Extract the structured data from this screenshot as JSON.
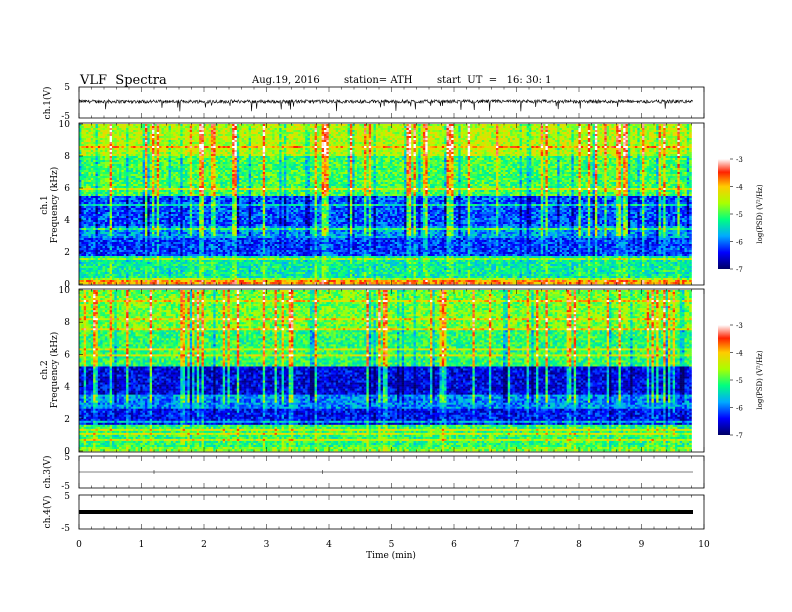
{
  "header": {
    "title": "VLF  Spectra",
    "date": "Aug.19, 2016",
    "station": "station= ATH",
    "start": "start  UT  =   16: 30: 1"
  },
  "chart_data": [
    {
      "type": "line",
      "panel": "ch1-waveform",
      "ylabel": "ch.1(V)",
      "ylim": [
        -5,
        5
      ],
      "yticks": [
        "5",
        "-5"
      ],
      "xlim": [
        0,
        10
      ],
      "description_values": {
        "baseline_V": 0.0,
        "noise_amplitude_V": 0.6,
        "max_spike_V": -3.5
      }
    },
    {
      "type": "heatmap",
      "panel": "ch1-spectrogram",
      "ylabel": "Frequency  (kHz)",
      "channel_label": "ch.1",
      "ylim": [
        0,
        10
      ],
      "yticks": [
        "0",
        "2",
        "4",
        "6",
        "8",
        "10"
      ],
      "xlim": [
        0,
        9.8
      ],
      "colorbar": {
        "label": "log(PSD) (V²/Hz)",
        "range": [
          -7,
          -3
        ],
        "ticks": [
          "-3",
          "-4",
          "-5",
          "-6",
          "-7"
        ]
      },
      "bands_kHz": [
        {
          "from": 0.0,
          "to": 0.3,
          "logPSD": -3.8
        },
        {
          "from": 0.3,
          "to": 1.7,
          "logPSD": -5.3
        },
        {
          "from": 1.7,
          "to": 2.9,
          "logPSD": -6.2
        },
        {
          "from": 2.9,
          "to": 3.6,
          "logPSD": -5.8
        },
        {
          "from": 3.6,
          "to": 5.5,
          "logPSD": -6.1
        },
        {
          "from": 5.5,
          "to": 8.0,
          "logPSD": -5.0
        },
        {
          "from": 8.0,
          "to": 10.0,
          "logPSD": -4.5
        }
      ]
    },
    {
      "type": "heatmap",
      "panel": "ch2-spectrogram",
      "ylabel": "Frequency  (kHz)",
      "channel_label": "ch.2",
      "ylim": [
        0,
        10
      ],
      "yticks": [
        "0",
        "2",
        "4",
        "6",
        "8",
        "10"
      ],
      "xlim": [
        0,
        9.8
      ],
      "colorbar": {
        "label": "log(PSD) (V²/Hz)",
        "range": [
          -7,
          -3
        ],
        "ticks": [
          "-3",
          "-4",
          "-5",
          "-6",
          "-7"
        ]
      },
      "bands_kHz": [
        {
          "from": 0.0,
          "to": 0.3,
          "logPSD": -4.8
        },
        {
          "from": 0.3,
          "to": 1.6,
          "logPSD": -5.1
        },
        {
          "from": 1.6,
          "to": 2.6,
          "logPSD": -6.4
        },
        {
          "from": 2.6,
          "to": 3.4,
          "logPSD": -5.9
        },
        {
          "from": 3.4,
          "to": 5.2,
          "logPSD": -6.5
        },
        {
          "from": 5.2,
          "to": 7.5,
          "logPSD": -5.1
        },
        {
          "from": 7.5,
          "to": 10.0,
          "logPSD": -4.8
        }
      ]
    },
    {
      "type": "line",
      "panel": "ch3-waveform",
      "ylabel": "ch.3(V)",
      "ylim": [
        -5,
        5
      ],
      "yticks": [
        "5",
        "-5"
      ],
      "xlim": [
        0,
        10
      ],
      "description_values": {
        "baseline_V": 0.0
      }
    },
    {
      "type": "line",
      "panel": "ch4-waveform",
      "ylabel": "ch.4(V)",
      "ylim": [
        -5,
        5
      ],
      "yticks": [
        "5",
        "-5"
      ],
      "xlim": [
        0,
        10
      ],
      "description_values": {
        "baseline_V": 0.0
      }
    }
  ],
  "xaxis": {
    "label": "Time  (min)",
    "ticks": [
      "0",
      "1",
      "2",
      "3",
      "4",
      "5",
      "6",
      "7",
      "8",
      "9",
      "10"
    ]
  }
}
